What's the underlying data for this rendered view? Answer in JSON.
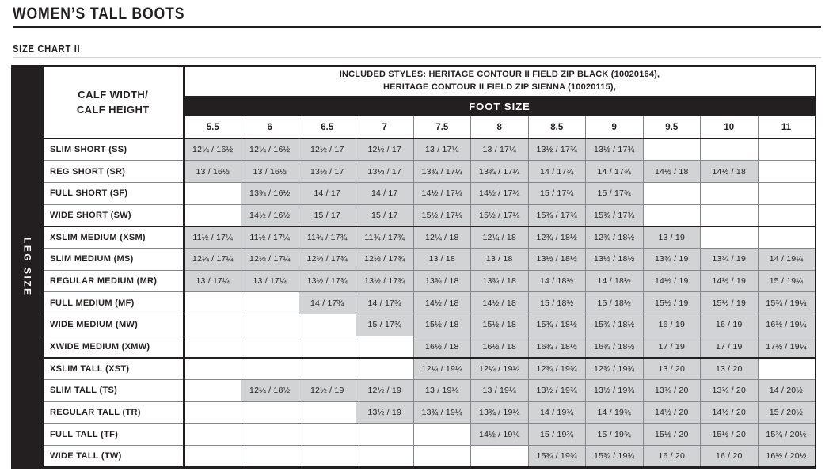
{
  "header": {
    "title": "WOMEN’S TALL BOOTS",
    "subtitle": "SIZE CHART II"
  },
  "colors": {
    "black": "#231f20",
    "cell_gray": "#d1d3d4",
    "border_gray": "#85878a"
  },
  "size_table": {
    "included_styles_line1": "INCLUDED STYLES: HERITAGE CONTOUR II FIELD ZIP BLACK (10020164),",
    "included_styles_line2": "HERITAGE CONTOUR II FIELD ZIP SIENNA (10020115),",
    "foot_size_label": "FOOT SIZE",
    "left_axis_label": "LEG SIZE",
    "corner_label_line1": "CALF WIDTH/",
    "corner_label_line2": "CALF HEIGHT",
    "foot_sizes": [
      "5.5",
      "6",
      "6.5",
      "7",
      "7.5",
      "8",
      "8.5",
      "9",
      "9.5",
      "10",
      "11"
    ],
    "rows": [
      {
        "label": "SLIM SHORT (SS)",
        "group_start": true,
        "cells": [
          "12¼ / 16½",
          "12¼ / 16½",
          "12½ / 17",
          "12½ / 17",
          "13 / 17¼",
          "13 / 17¼",
          "13½ / 17¾",
          "13½ / 17¾",
          "",
          "",
          ""
        ]
      },
      {
        "label": "REG SHORT (SR)",
        "group_start": false,
        "cells": [
          "13 / 16½",
          "13 / 16½",
          "13½ / 17",
          "13½ / 17",
          "13¾ / 17¼",
          "13¾ / 17¼",
          "14 / 17¾",
          "14 / 17¾",
          "14½ / 18",
          "14½ / 18",
          ""
        ]
      },
      {
        "label": "FULL SHORT (SF)",
        "group_start": false,
        "cells": [
          "",
          "13¾ / 16½",
          "14 / 17",
          "14 / 17",
          "14½ / 17¼",
          "14½ / 17¼",
          "15 / 17¾",
          "15 / 17¾",
          "",
          "",
          ""
        ]
      },
      {
        "label": "WIDE SHORT (SW)",
        "group_start": false,
        "cells": [
          "",
          "14½ / 16½",
          "15 / 17",
          "15 / 17",
          "15½ / 17¼",
          "15½ / 17¼",
          "15¾ / 17¾",
          "15¾ / 17¾",
          "",
          "",
          ""
        ]
      },
      {
        "label": "XSLIM MEDIUM (XSM)",
        "group_start": true,
        "cells": [
          "11½ / 17¼",
          "11½ / 17¼",
          "11¾ / 17¾",
          "11¾ / 17¾",
          "12¼ / 18",
          "12¼ / 18",
          "12¾ / 18½",
          "12¾ / 18½",
          "13 / 19",
          "",
          ""
        ]
      },
      {
        "label": "SLIM MEDIUM (MS)",
        "group_start": false,
        "cells": [
          "12¼ / 17¼",
          "12½ / 17¼",
          "12½ / 17¾",
          "12½ / 17¾",
          "13 / 18",
          "13 / 18",
          "13½ / 18½",
          "13½ / 18½",
          "13¾ / 19",
          "13¾ / 19",
          "14 / 19¼"
        ]
      },
      {
        "label": "REGULAR MEDIUM (MR)",
        "group_start": false,
        "cells": [
          "13 / 17¼",
          "13 / 17¼",
          "13½ / 17¾",
          "13½ / 17¾",
          "13¾ / 18",
          "13¾ / 18",
          "14 / 18½",
          "14 / 18½",
          "14½ / 19",
          "14½ / 19",
          "15 / 19¼"
        ]
      },
      {
        "label": "FULL MEDIUM (MF)",
        "group_start": false,
        "cells": [
          "",
          "",
          "14 / 17¾",
          "14 / 17¾",
          "14½ / 18",
          "14½ / 18",
          "15 / 18½",
          "15 / 18½",
          "15½ / 19",
          "15½ / 19",
          "15¾ / 19¼"
        ]
      },
      {
        "label": "WIDE MEDIUM (MW)",
        "group_start": false,
        "cells": [
          "",
          "",
          "",
          "15 / 17¾",
          "15½ / 18",
          "15½ / 18",
          "15¾ / 18½",
          "15¾ / 18½",
          "16 / 19",
          "16 / 19",
          "16½ / 19¼"
        ]
      },
      {
        "label": "XWIDE MEDIUM (XMW)",
        "group_start": false,
        "cells": [
          "",
          "",
          "",
          "",
          "16½ / 18",
          "16½ / 18",
          "16¾ / 18½",
          "16¾ / 18½",
          "17 / 19",
          "17 / 19",
          "17½ / 19¼"
        ]
      },
      {
        "label": "XSLIM TALL (XST)",
        "group_start": true,
        "cells": [
          "",
          "",
          "",
          "",
          "12¼ / 19¼",
          "12¼ / 19¼",
          "12¾ / 19¾",
          "12¾ / 19¾",
          "13 / 20",
          "13 / 20",
          ""
        ]
      },
      {
        "label": "SLIM TALL (TS)",
        "group_start": false,
        "cells": [
          "",
          "12¼ / 18½",
          "12½ / 19",
          "12½ / 19",
          "13 / 19¼",
          "13 / 19¼",
          "13½ / 19¾",
          "13½ / 19¾",
          "13¾ / 20",
          "13¾ / 20",
          "14 / 20½"
        ]
      },
      {
        "label": "REGULAR TALL (TR)",
        "group_start": false,
        "cells": [
          "",
          "",
          "",
          "13½ / 19",
          "13¾ / 19¼",
          "13¾ / 19¼",
          "14 / 19¾",
          "14 / 19¾",
          "14½ / 20",
          "14½ / 20",
          "15 / 20½"
        ]
      },
      {
        "label": "FULL TALL (TF)",
        "group_start": false,
        "cells": [
          "",
          "",
          "",
          "",
          "",
          "14½ / 19¼",
          "15 / 19¾",
          "15 / 19¾",
          "15½ / 20",
          "15½ / 20",
          "15¾ / 20½"
        ]
      },
      {
        "label": "WIDE TALL (TW)",
        "group_start": false,
        "cells": [
          "",
          "",
          "",
          "",
          "",
          "",
          "15¾ / 19¾",
          "15¾ / 19¾",
          "16 / 20",
          "16 / 20",
          "16½ / 20½"
        ]
      }
    ]
  }
}
